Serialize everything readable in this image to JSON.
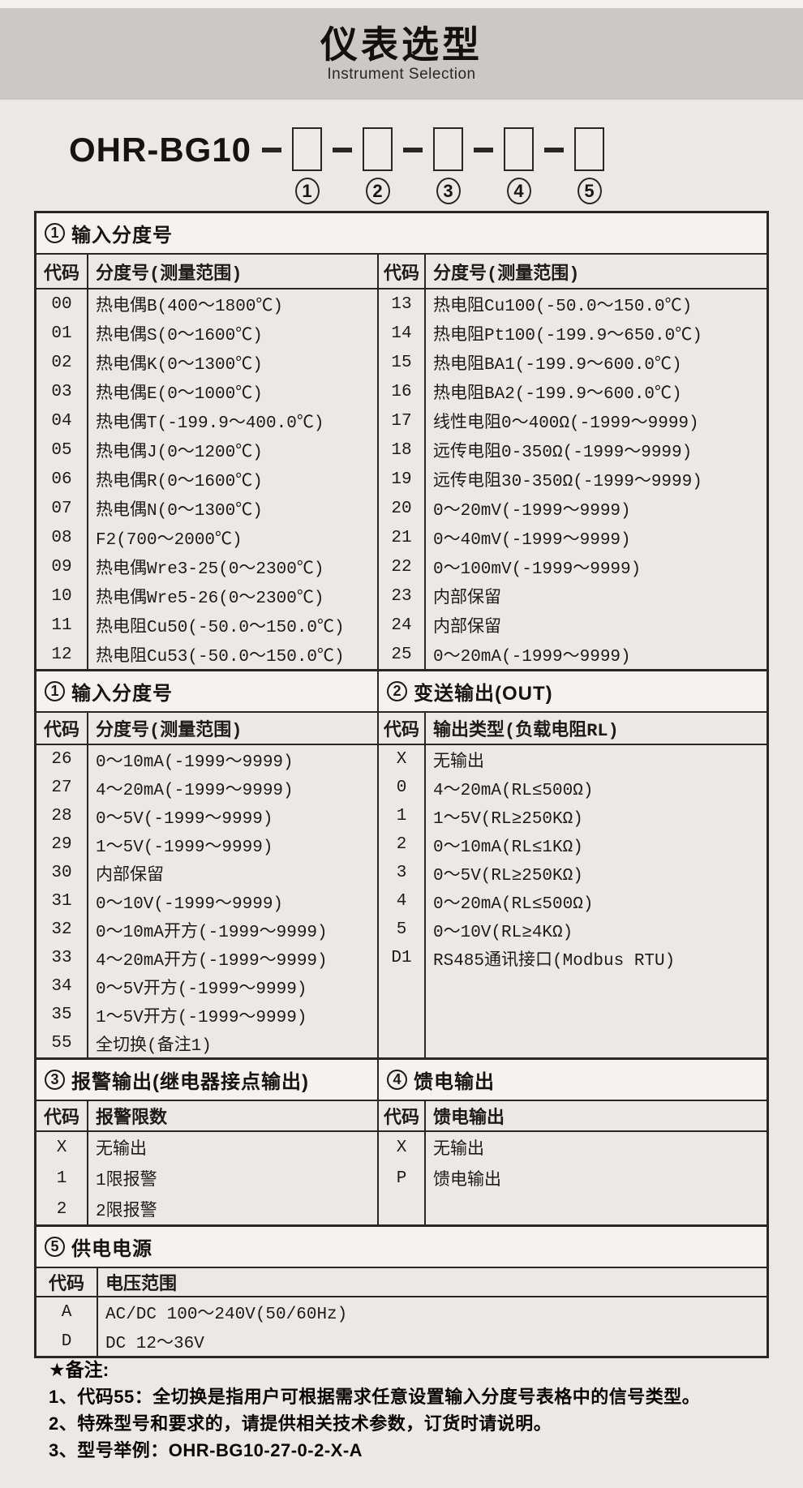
{
  "header": {
    "title": "仪表选型",
    "subtitle": "Instrument Selection"
  },
  "model": {
    "prefix": "OHR-BG10",
    "callouts": [
      "1",
      "2",
      "3",
      "4",
      "5"
    ]
  },
  "sections": {
    "inputA": {
      "badge": "1",
      "title": "输入分度号",
      "code_header": "代码",
      "desc_header": "分度号(测量范围)",
      "left_rows": [
        {
          "code": "00",
          "desc": "热电偶B(400～1800℃)"
        },
        {
          "code": "01",
          "desc": "热电偶S(0～1600℃)"
        },
        {
          "code": "02",
          "desc": "热电偶K(0～1300℃)"
        },
        {
          "code": "03",
          "desc": "热电偶E(0～1000℃)"
        },
        {
          "code": "04",
          "desc": "热电偶T(-199.9～400.0℃)"
        },
        {
          "code": "05",
          "desc": "热电偶J(0～1200℃)"
        },
        {
          "code": "06",
          "desc": "热电偶R(0～1600℃)"
        },
        {
          "code": "07",
          "desc": "热电偶N(0～1300℃)"
        },
        {
          "code": "08",
          "desc": "F2(700～2000℃)"
        },
        {
          "code": "09",
          "desc": "热电偶Wre3-25(0～2300℃)"
        },
        {
          "code": "10",
          "desc": "热电偶Wre5-26(0～2300℃)"
        },
        {
          "code": "11",
          "desc": "热电阻Cu50(-50.0～150.0℃)"
        },
        {
          "code": "12",
          "desc": "热电阻Cu53(-50.0～150.0℃)"
        }
      ],
      "right_rows": [
        {
          "code": "13",
          "desc": "热电阻Cu100(-50.0～150.0℃)"
        },
        {
          "code": "14",
          "desc": "热电阻Pt100(-199.9～650.0℃)"
        },
        {
          "code": "15",
          "desc": "热电阻BA1(-199.9～600.0℃)"
        },
        {
          "code": "16",
          "desc": "热电阻BA2(-199.9～600.0℃)"
        },
        {
          "code": "17",
          "desc": "线性电阻0～400Ω(-1999～9999)"
        },
        {
          "code": "18",
          "desc": "远传电阻0-350Ω(-1999～9999)"
        },
        {
          "code": "19",
          "desc": "远传电阻30-350Ω(-1999～9999)"
        },
        {
          "code": "20",
          "desc": "0～20mV(-1999～9999)"
        },
        {
          "code": "21",
          "desc": "0～40mV(-1999～9999)"
        },
        {
          "code": "22",
          "desc": "0～100mV(-1999～9999)"
        },
        {
          "code": "23",
          "desc": "内部保留"
        },
        {
          "code": "24",
          "desc": "内部保留"
        },
        {
          "code": "25",
          "desc": "0～20mA(-1999～9999)"
        }
      ]
    },
    "inputB": {
      "badge": "1",
      "title": "输入分度号",
      "code_header": "代码",
      "desc_header": "分度号(测量范围)",
      "rows": [
        {
          "code": "26",
          "desc": "0～10mA(-1999～9999)"
        },
        {
          "code": "27",
          "desc": "4～20mA(-1999～9999)"
        },
        {
          "code": "28",
          "desc": "0～5V(-1999～9999)"
        },
        {
          "code": "29",
          "desc": "1～5V(-1999～9999)"
        },
        {
          "code": "30",
          "desc": "内部保留"
        },
        {
          "code": "31",
          "desc": "0～10V(-1999～9999)"
        },
        {
          "code": "32",
          "desc": "0～10mA开方(-1999～9999)"
        },
        {
          "code": "33",
          "desc": "4～20mA开方(-1999～9999)"
        },
        {
          "code": "34",
          "desc": "0～5V开方(-1999～9999)"
        },
        {
          "code": "35",
          "desc": "1～5V开方(-1999～9999)"
        },
        {
          "code": "55",
          "desc": "全切换(备注1)"
        }
      ]
    },
    "transmit": {
      "badge": "2",
      "title": "变送输出(OUT)",
      "code_header": "代码",
      "desc_header": "输出类型(负载电阻RL)",
      "rows": [
        {
          "code": "X",
          "desc": "无输出"
        },
        {
          "code": "0",
          "desc": "4～20mA(RL≤500Ω)"
        },
        {
          "code": "1",
          "desc": "1～5V(RL≥250KΩ)"
        },
        {
          "code": "2",
          "desc": "0～10mA(RL≤1KΩ)"
        },
        {
          "code": "3",
          "desc": "0～5V(RL≥250KΩ)"
        },
        {
          "code": "4",
          "desc": "0～20mA(RL≤500Ω)"
        },
        {
          "code": "5",
          "desc": "0～10V(RL≥4KΩ)"
        },
        {
          "code": "D1",
          "desc": "RS485通讯接口(Modbus RTU)"
        }
      ]
    },
    "alarm": {
      "badge": "3",
      "title": "报警输出(继电器接点输出)",
      "code_header": "代码",
      "desc_header": "报警限数",
      "rows": [
        {
          "code": "X",
          "desc": "无输出"
        },
        {
          "code": "1",
          "desc": "1限报警"
        },
        {
          "code": "2",
          "desc": "2限报警"
        }
      ]
    },
    "feed": {
      "badge": "4",
      "title": "馈电输出",
      "code_header": "代码",
      "desc_header": "馈电输出",
      "rows": [
        {
          "code": "X",
          "desc": "无输出"
        },
        {
          "code": "P",
          "desc": "馈电输出"
        }
      ]
    },
    "power": {
      "badge": "5",
      "title": "供电电源",
      "code_header": "代码",
      "desc_header": "电压范围",
      "rows": [
        {
          "code": "A",
          "desc": "AC/DC 100～240V(50/60Hz)"
        },
        {
          "code": "D",
          "desc": "DC 12～36V"
        }
      ]
    }
  },
  "notes": {
    "heading": "★备注:",
    "items": [
      "1、代码55：全切换是指用户可根据需求任意设置输入分度号表格中的信号类型。",
      "2、特殊型号和要求的，请提供相关技术参数，订货时请说明。",
      "3、型号举例：OHR-BG10-27-0-2-X-A"
    ]
  }
}
